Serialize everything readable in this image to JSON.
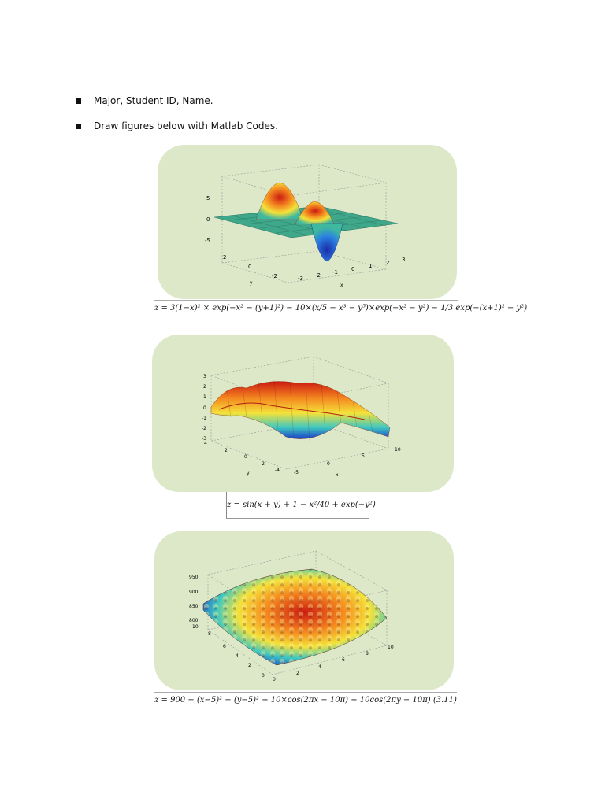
{
  "bullets": [
    {
      "text": "Major, Student ID, Name."
    },
    {
      "text": "Draw figures below with Matlab Codes."
    }
  ],
  "figures": [
    {
      "z_ticks": [
        "5",
        "0",
        "-5"
      ],
      "y_ticks": [
        "2",
        "0",
        "-2"
      ],
      "x_ticks": [
        "-3",
        "-2",
        "-1",
        "0",
        "1",
        "2",
        "3"
      ],
      "y_label": "y",
      "x_label": "x",
      "formula": "z = 3(1−x)² × exp(−x² − (y+1)²) − 10×(x/5 − x³ − y⁵)×exp(−x² − y²) − 1/3 exp(−(x+1)² − y²)"
    },
    {
      "z_ticks": [
        "3",
        "2",
        "1",
        "0",
        "-1",
        "-2",
        "-3"
      ],
      "y_ticks": [
        "4",
        "2",
        "0",
        "-2",
        "-4"
      ],
      "x_ticks": [
        "-5",
        "0",
        "5",
        "10"
      ],
      "y_label": "y",
      "x_label": "x",
      "formula": "z = sin(x + y) + 1 − x²/40 + exp(−y²)"
    },
    {
      "z_ticks": [
        "950",
        "900",
        "850",
        "800"
      ],
      "y_ticks": [
        "10",
        "8",
        "6",
        "4",
        "2",
        "0"
      ],
      "x_ticks": [
        "0",
        "2",
        "4",
        "6",
        "8",
        "10"
      ],
      "formula": "z = 900 − (x−5)² − (y−5)² + 10×cos(2πx − 10π) + 10cos(2πy − 10π) (3.11)"
    }
  ],
  "colors": {
    "panel_bg": "#dde8c8",
    "surface_high": "#cc1a10",
    "surface_mid": "#f4e23a",
    "surface_low": "#1a40c8",
    "flat_plane": "#3fa88a"
  }
}
